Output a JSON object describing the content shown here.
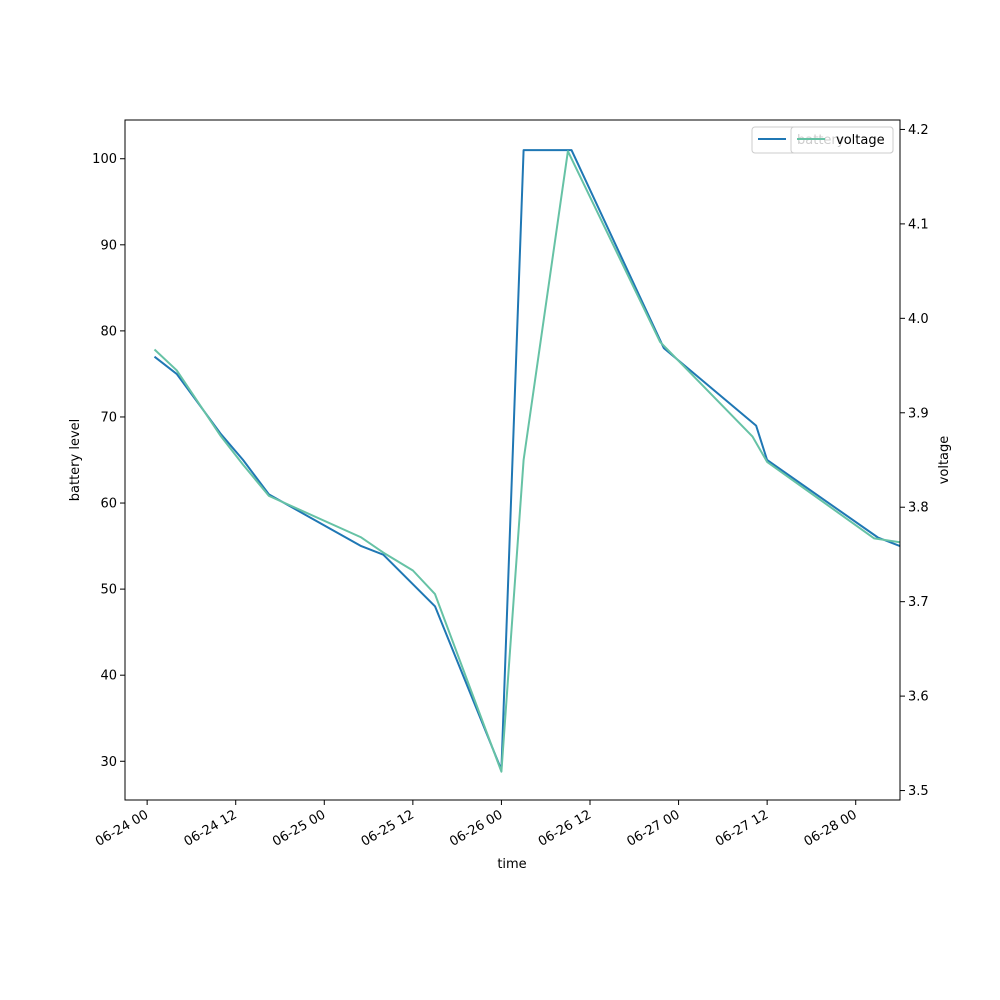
{
  "chart_data": {
    "type": "line",
    "xlabel": "time",
    "ylabel_left": "battery level",
    "ylabel_right": "voltage",
    "x_ticks": [
      "06-24 00",
      "06-24 12",
      "06-25 00",
      "06-25 12",
      "06-26 00",
      "06-26 12",
      "06-27 00",
      "06-27 12",
      "06-28 00"
    ],
    "y_left_ticks": [
      30,
      40,
      50,
      60,
      70,
      80,
      90,
      100
    ],
    "y_right_ticks": [
      "3.5",
      "3.6",
      "3.7",
      "3.8",
      "3.9",
      "4.0",
      "4.1",
      "4.2"
    ],
    "x_range": [
      "2024-06-23T21:00",
      "2024-06-28T06:00"
    ],
    "y_left_range": [
      25.5,
      104.5
    ],
    "y_right_range": [
      3.49,
      4.21
    ],
    "legend_position": "top-right",
    "grid": false,
    "series": [
      {
        "name": "battery",
        "axis": "left",
        "color": "#1f77b4",
        "points": [
          [
            "2024-06-24T01:00",
            77
          ],
          [
            "2024-06-24T04:00",
            75
          ],
          [
            "2024-06-24T10:00",
            68
          ],
          [
            "2024-06-24T13:00",
            65
          ],
          [
            "2024-06-24T16:30",
            61
          ],
          [
            "2024-06-25T05:00",
            55
          ],
          [
            "2024-06-25T08:00",
            54
          ],
          [
            "2024-06-25T15:00",
            48
          ],
          [
            "2024-06-26T00:00",
            29
          ],
          [
            "2024-06-26T03:00",
            101
          ],
          [
            "2024-06-26T09:30",
            101
          ],
          [
            "2024-06-26T22:00",
            78
          ],
          [
            "2024-06-27T10:30",
            69
          ],
          [
            "2024-06-27T12:00",
            65
          ],
          [
            "2024-06-28T03:00",
            56
          ],
          [
            "2024-06-28T06:00",
            55
          ]
        ]
      },
      {
        "name": "voltage",
        "axis": "right",
        "color": "#66c2a5",
        "points": [
          [
            "2024-06-24T01:00",
            3.967
          ],
          [
            "2024-06-24T04:00",
            3.945
          ],
          [
            "2024-06-24T10:00",
            3.875
          ],
          [
            "2024-06-24T13:00",
            3.845
          ],
          [
            "2024-06-24T16:30",
            3.812
          ],
          [
            "2024-06-25T05:00",
            3.768
          ],
          [
            "2024-06-25T08:00",
            3.752
          ],
          [
            "2024-06-25T12:00",
            3.733
          ],
          [
            "2024-06-25T15:00",
            3.708
          ],
          [
            "2024-06-26T00:00",
            3.52
          ],
          [
            "2024-06-26T03:00",
            3.85
          ],
          [
            "2024-06-26T09:00",
            4.177
          ],
          [
            "2024-06-26T21:30",
            3.975
          ],
          [
            "2024-06-27T10:00",
            3.875
          ],
          [
            "2024-06-27T12:00",
            3.848
          ],
          [
            "2024-06-28T02:30",
            3.767
          ],
          [
            "2024-06-28T06:00",
            3.763
          ]
        ]
      }
    ]
  }
}
